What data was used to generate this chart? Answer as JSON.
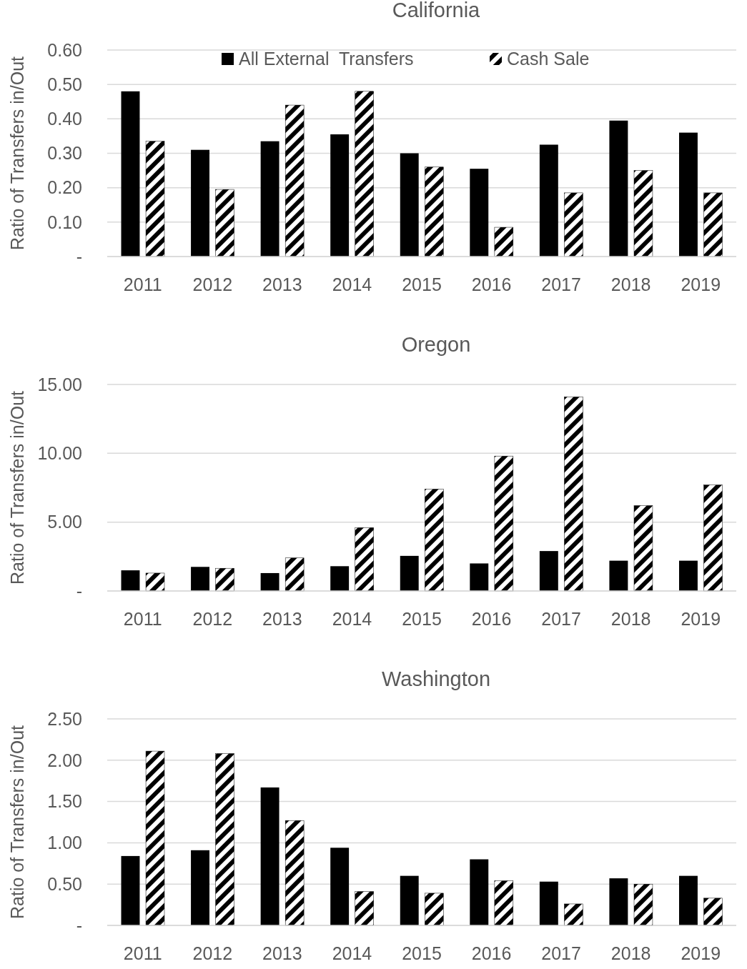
{
  "chart_data": [
    {
      "type": "bar",
      "title": "California",
      "ylabel": "Ratio of Transfers in/Out",
      "categories": [
        "2011",
        "2012",
        "2013",
        "2014",
        "2015",
        "2016",
        "2017",
        "2018",
        "2019"
      ],
      "series": [
        {
          "name": "All External  Transfers",
          "color": "#000000",
          "values": [
            0.48,
            0.31,
            0.335,
            0.355,
            0.3,
            0.255,
            0.325,
            0.395,
            0.36
          ]
        },
        {
          "name": "Cash Sale",
          "color": "#000000",
          "values": [
            0.335,
            0.195,
            0.44,
            0.48,
            0.26,
            0.085,
            0.185,
            0.25,
            0.185
          ]
        }
      ],
      "ylim": [
        0,
        0.6
      ],
      "yticks": [
        {
          "value": 0,
          "label": "-"
        },
        {
          "value": 0.1,
          "label": "0.10"
        },
        {
          "value": 0.2,
          "label": "0.20"
        },
        {
          "value": 0.3,
          "label": "0.30"
        },
        {
          "value": 0.4,
          "label": "0.40"
        },
        {
          "value": 0.5,
          "label": "0.50"
        },
        {
          "value": 0.6,
          "label": "0.60"
        }
      ],
      "grid": "y",
      "legend": "top"
    },
    {
      "type": "bar",
      "title": "Oregon",
      "ylabel": "Ratio of Transfers in/Out",
      "categories": [
        "2011",
        "2012",
        "2013",
        "2014",
        "2015",
        "2016",
        "2017",
        "2018",
        "2019"
      ],
      "series": [
        {
          "color": "#000000",
          "values": [
            1.5,
            1.75,
            1.3,
            1.8,
            2.55,
            2.0,
            2.9,
            2.2,
            2.2
          ]
        },
        {
          "color": "#000000",
          "values": [
            1.3,
            1.65,
            2.4,
            4.6,
            7.4,
            9.8,
            14.1,
            6.2,
            7.7
          ]
        }
      ],
      "ylim": [
        0,
        15
      ],
      "yticks": [
        {
          "value": 0,
          "label": "-"
        },
        {
          "value": 5,
          "label": "5.00"
        },
        {
          "value": 10,
          "label": "10.00"
        },
        {
          "value": 15,
          "label": "15.00"
        }
      ],
      "grid": "y"
    },
    {
      "type": "bar",
      "title": "Washington",
      "ylabel": "Ratio of Transfers in/Out",
      "categories": [
        "2011",
        "2012",
        "2013",
        "2014",
        "2015",
        "2016",
        "2017",
        "2018",
        "2019"
      ],
      "series": [
        {
          "color": "#000000",
          "values": [
            0.84,
            0.91,
            1.67,
            0.94,
            0.6,
            0.8,
            0.53,
            0.57,
            0.6
          ]
        },
        {
          "color": "#000000",
          "values": [
            2.11,
            2.08,
            1.27,
            0.41,
            0.39,
            0.54,
            0.26,
            0.5,
            0.33
          ]
        }
      ],
      "ylim": [
        0,
        2.5
      ],
      "yticks": [
        {
          "value": 0,
          "label": "-"
        },
        {
          "value": 0.5,
          "label": "0.50"
        },
        {
          "value": 1,
          "label": "1.00"
        },
        {
          "value": 1.5,
          "label": "1.50"
        },
        {
          "value": 2,
          "label": "2.00"
        },
        {
          "value": 2.5,
          "label": "2.50"
        }
      ],
      "grid": "y"
    }
  ]
}
